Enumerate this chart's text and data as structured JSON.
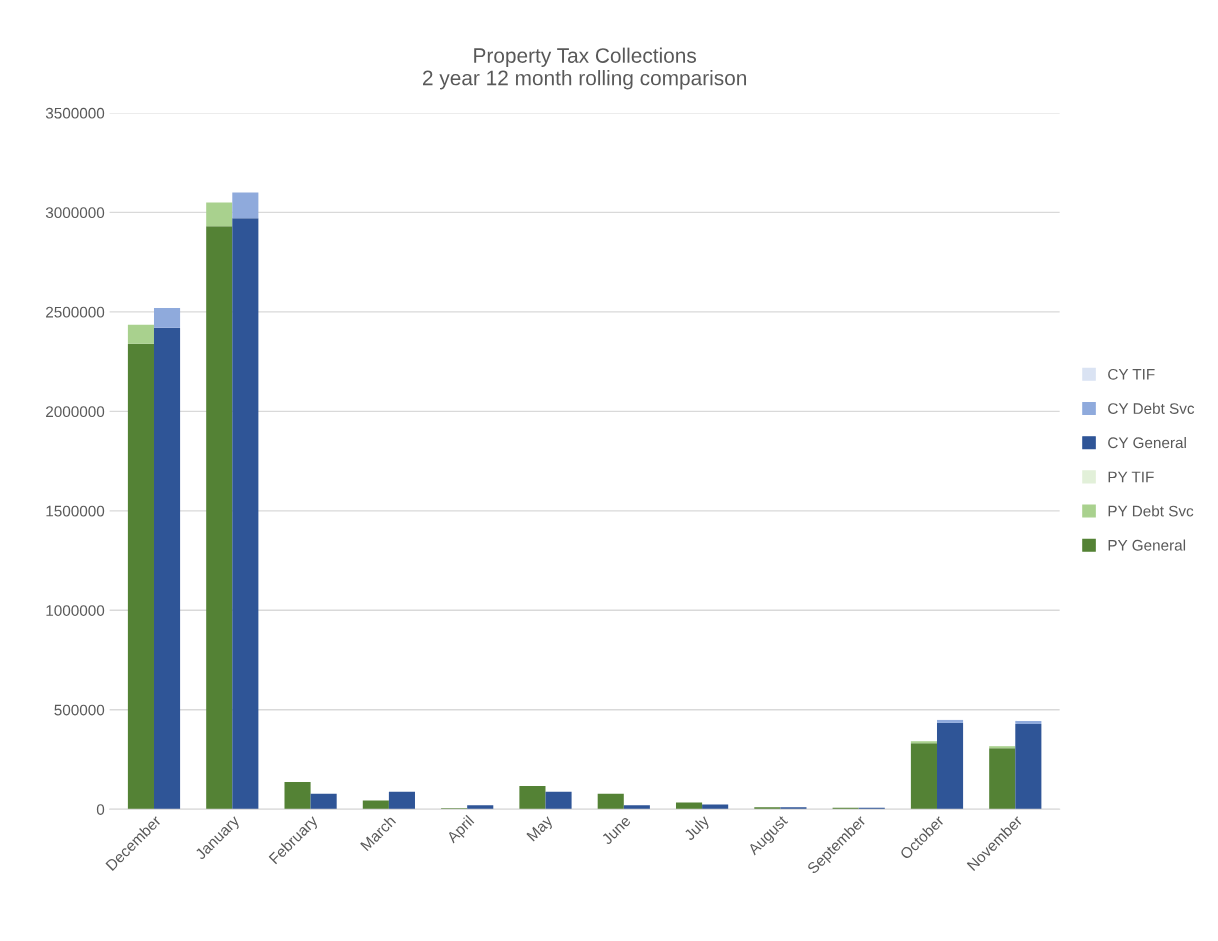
{
  "chart_data": {
    "type": "bar",
    "title": "Property Tax Collections\n2 year 12 month rolling comparison",
    "categories": [
      "December",
      null,
      "January",
      null,
      "February",
      null,
      "March",
      null,
      "April",
      null,
      "May",
      null,
      "June",
      null,
      "July",
      null,
      "August",
      null,
      "September",
      null,
      "October",
      null,
      "November",
      null
    ],
    "stacked": true,
    "series": [
      {
        "name": "PY General",
        "color": "#548235",
        "values": [
          2340000,
          null,
          2930000,
          null,
          137000,
          null,
          44000,
          null,
          5000,
          null,
          117000,
          null,
          78000,
          null,
          34000,
          null,
          10000,
          null,
          8000,
          null,
          332000,
          null,
          307000,
          null
        ]
      },
      {
        "name": "PY Debt Svc",
        "color": "#a9d18e",
        "values": [
          95000,
          null,
          120000,
          null,
          null,
          null,
          null,
          null,
          null,
          null,
          null,
          null,
          null,
          null,
          null,
          null,
          null,
          null,
          null,
          null,
          10000,
          null,
          10000,
          null
        ]
      },
      {
        "name": "PY TIF",
        "color": "#e2f0d9",
        "values": [
          null,
          null,
          null,
          null,
          null,
          null,
          null,
          null,
          null,
          null,
          null,
          null,
          null,
          null,
          null,
          null,
          null,
          null,
          null,
          null,
          null,
          null,
          null,
          null
        ]
      },
      {
        "name": "CY General",
        "color": "#2f5597",
        "values": [
          null,
          2420000,
          null,
          2970000,
          null,
          78000,
          null,
          88000,
          null,
          20000,
          null,
          88000,
          null,
          20000,
          null,
          24000,
          null,
          10000,
          null,
          8000,
          null,
          434000,
          null,
          429000
        ]
      },
      {
        "name": "CY Debt Svc",
        "color": "#8faadc",
        "values": [
          null,
          100000,
          null,
          130000,
          null,
          null,
          null,
          null,
          null,
          null,
          null,
          null,
          null,
          null,
          null,
          null,
          null,
          null,
          null,
          null,
          null,
          15000,
          null,
          15000
        ]
      },
      {
        "name": "CY TIF",
        "color": "#dae3f3",
        "values": [
          null,
          null,
          null,
          null,
          null,
          null,
          null,
          null,
          null,
          null,
          null,
          null,
          null,
          null,
          null,
          null,
          null,
          null,
          null,
          null,
          null,
          null,
          null,
          null
        ]
      }
    ],
    "ylim": [
      0,
      3500000
    ],
    "yticks": [
      0,
      500000,
      1000000,
      1500000,
      2000000,
      2500000,
      3000000,
      3500000
    ],
    "grid": "y",
    "legend": "right"
  }
}
